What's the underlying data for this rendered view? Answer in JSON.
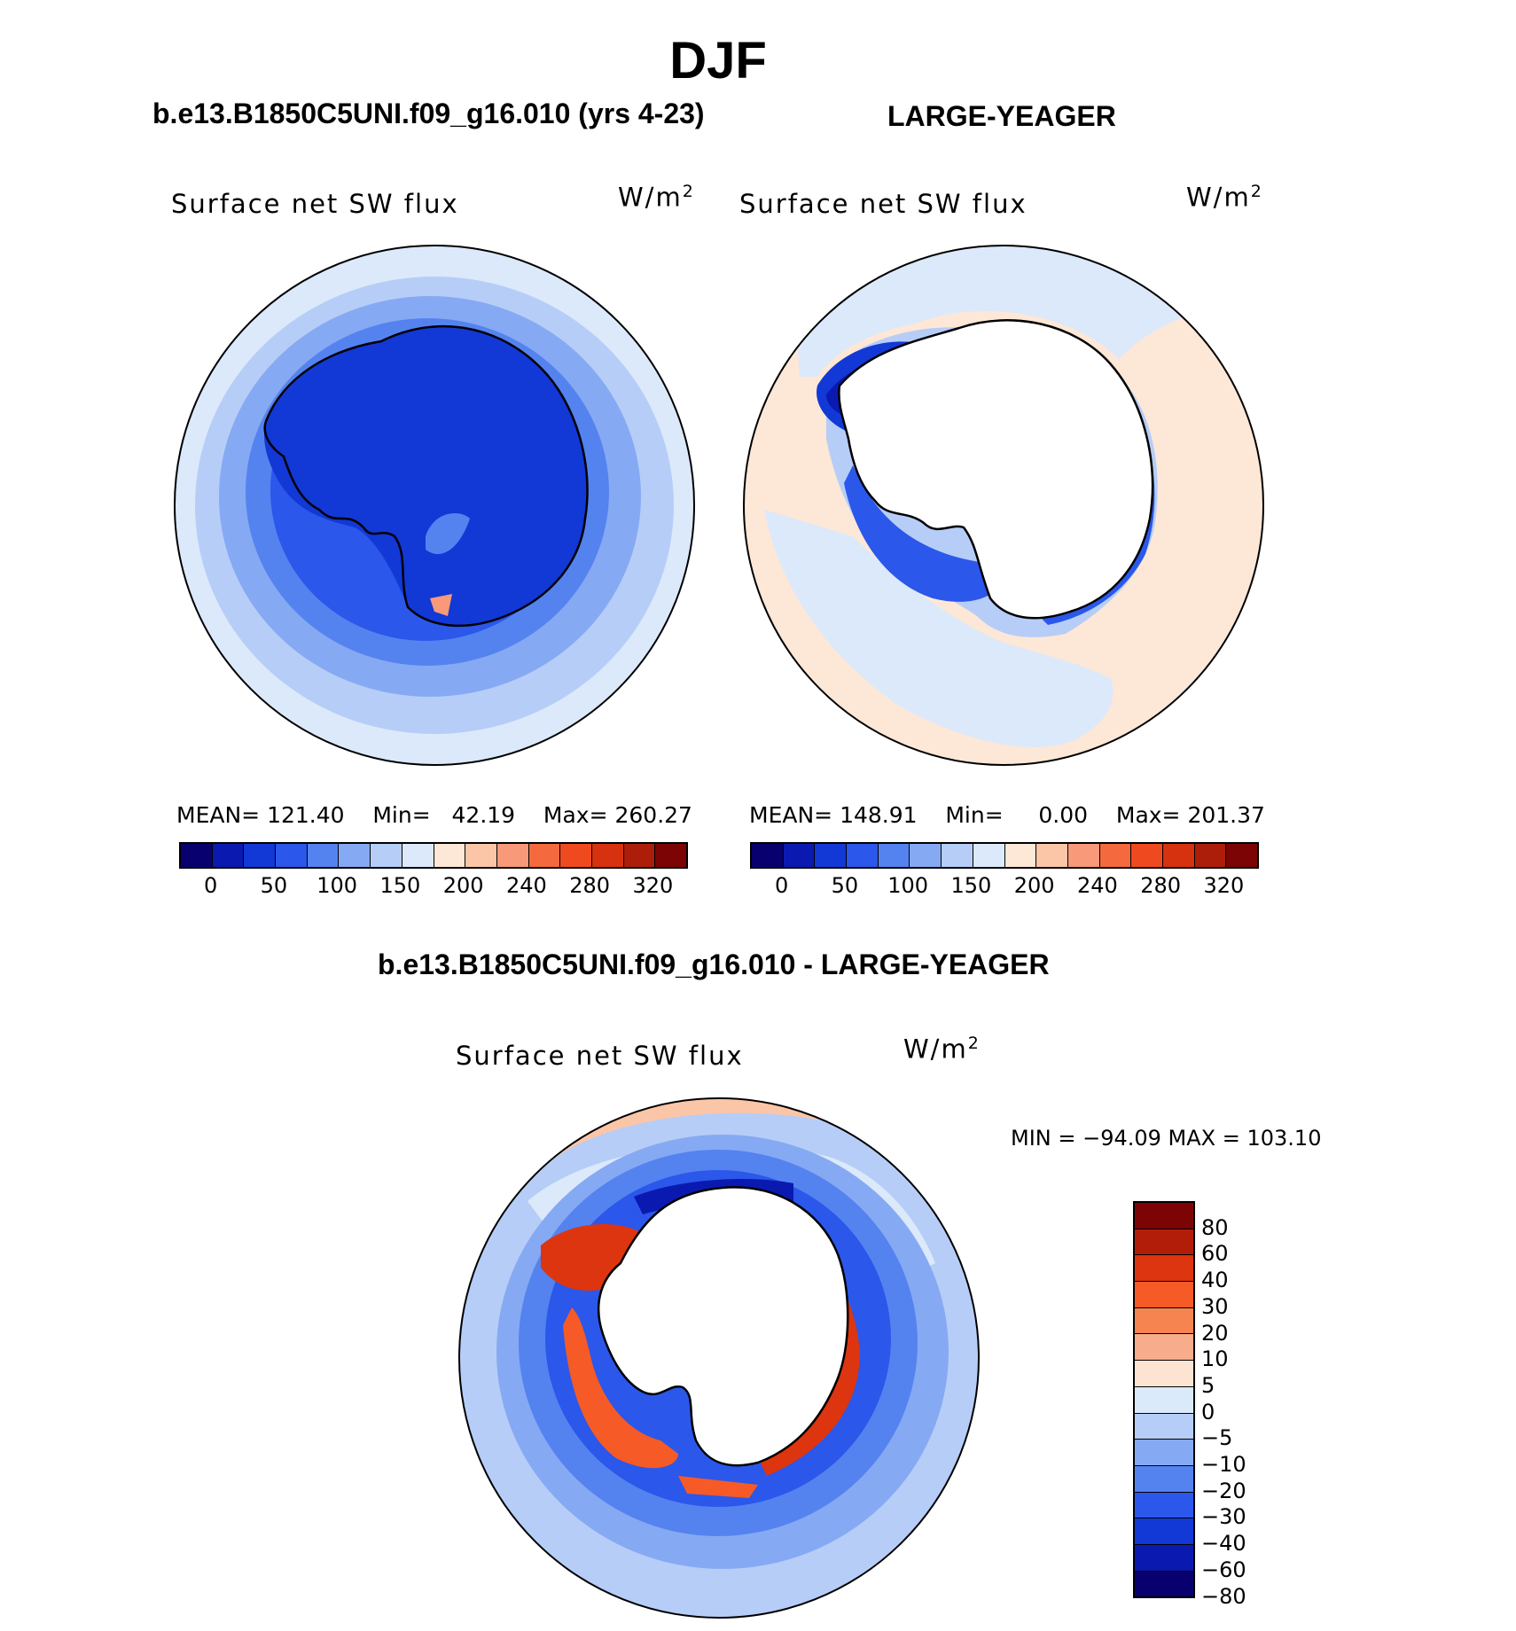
{
  "title": "DJF",
  "panels": [
    {
      "case_title": "b.e13.B1850C5UNI.f09_g16.010 (yrs 4-23)",
      "variable": "Surface net SW flux",
      "units_base": "W/m",
      "units_exp": "2",
      "stats": {
        "mean_label": "MEAN=",
        "mean": "121.40",
        "min_label": "Min=",
        "min": "42.19",
        "max_label": "Max=",
        "max": "260.27"
      }
    },
    {
      "case_title": "LARGE-YEAGER",
      "variable": "Surface net SW flux",
      "units_base": "W/m",
      "units_exp": "2",
      "stats": {
        "mean_label": "MEAN=",
        "mean": "148.91",
        "min_label": "Min=",
        "min": "0.00",
        "max_label": "Max=",
        "max": "201.37"
      }
    }
  ],
  "abs_colorbar": {
    "colors": [
      "#08006e",
      "#0a1ab0",
      "#1238d6",
      "#2b57ea",
      "#5483f0",
      "#86a9f3",
      "#b6cdf7",
      "#dbe9fb",
      "#fde7d6",
      "#fbc5a8",
      "#f8997a",
      "#f46a3e",
      "#ef4a1f",
      "#d6320f",
      "#ad1e0a",
      "#7c0404"
    ],
    "labels": [
      "0",
      "50",
      "100",
      "150",
      "200",
      "240",
      "280",
      "320"
    ]
  },
  "diff": {
    "case_title": "b.e13.B1850C5UNI.f09_g16.010 - LARGE-YEAGER",
    "variable": "Surface net SW flux",
    "units_base": "W/m",
    "units_exp": "2",
    "minmax": "MIN = −94.09 MAX = 103.10",
    "colors": [
      "#7c0404",
      "#b21d0a",
      "#dd3510",
      "#f65a26",
      "#f68450",
      "#f7ad8c",
      "#fde4d2",
      "#dbeafb",
      "#b6cdf7",
      "#86a9f3",
      "#5483f0",
      "#2b57ea",
      "#1238d6",
      "#0a1ab0",
      "#08006e"
    ],
    "labels": [
      "80",
      "60",
      "40",
      "30",
      "20",
      "10",
      "5",
      "0",
      "−5",
      "−10",
      "−20",
      "−30",
      "−40",
      "−60",
      "−80"
    ]
  }
}
